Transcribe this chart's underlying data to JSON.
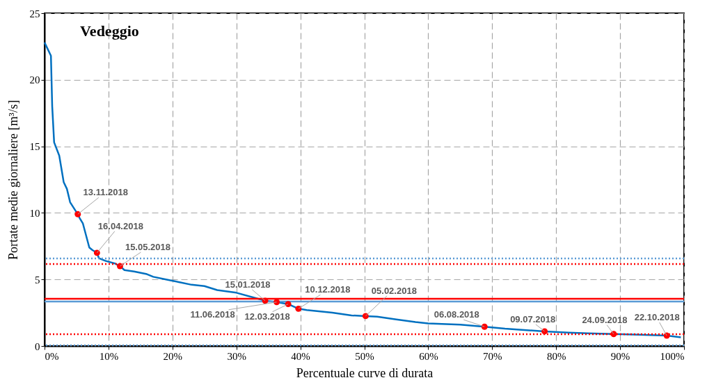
{
  "chart_data": {
    "type": "line",
    "title": "Vedeggio",
    "xlabel": "Percentuale  curve di durata",
    "ylabel": "Portate medie giornaliere  [m³/s]",
    "xlim": [
      0,
      100
    ],
    "ylim": [
      0,
      25
    ],
    "xticks": [
      {
        "value": 0,
        "label": "0%"
      },
      {
        "value": 10,
        "label": "10%"
      },
      {
        "value": 20,
        "label": "20%"
      },
      {
        "value": 30,
        "label": "30%"
      },
      {
        "value": 40,
        "label": "40%"
      },
      {
        "value": 50,
        "label": "50%"
      },
      {
        "value": 60,
        "label": "60%"
      },
      {
        "value": 70,
        "label": "70%"
      },
      {
        "value": 80,
        "label": "80%"
      },
      {
        "value": 90,
        "label": "90%"
      },
      {
        "value": 100,
        "label": "100%"
      }
    ],
    "yticks": [
      0,
      5,
      10,
      15,
      20,
      25
    ],
    "grid": true,
    "series": [
      {
        "type": "line",
        "color": "#0070c0",
        "x": [
          0,
          1,
          1.2,
          1.5,
          2.3,
          3,
          3.5,
          4,
          5.2,
          5.5,
          6,
          6.5,
          7,
          7.5,
          8.2,
          8.5,
          9.5,
          11,
          11.8,
          12.5,
          14,
          16,
          17,
          19,
          21,
          23,
          25,
          27,
          30,
          33,
          34.5,
          36.3,
          38.1,
          39.7,
          41,
          45,
          48,
          50.2,
          52,
          55,
          58,
          60,
          65,
          68.8,
          72,
          75,
          78.2,
          82,
          85,
          89,
          93,
          97.3,
          99.5
        ],
        "values": [
          22.8,
          21.8,
          18,
          15.3,
          14.3,
          12.3,
          11.8,
          10.8,
          9.9,
          9.6,
          9.2,
          8.3,
          7.4,
          7.2,
          7.0,
          6.6,
          6.4,
          6.2,
          6.0,
          5.7,
          5.6,
          5.4,
          5.2,
          5.0,
          4.8,
          4.6,
          4.5,
          4.2,
          4.0,
          3.6,
          3.4,
          3.3,
          3.15,
          2.8,
          2.7,
          2.5,
          2.3,
          2.25,
          2.2,
          2.0,
          1.8,
          1.7,
          1.6,
          1.45,
          1.3,
          1.2,
          1.1,
          1.0,
          0.95,
          0.9,
          0.85,
          0.78,
          0.65
        ]
      },
      {
        "type": "scatter",
        "color": "#ff0000",
        "marker": "circle",
        "x": [
          5.2,
          8.2,
          11.8,
          34.5,
          36.3,
          38.1,
          39.7,
          50.2,
          68.8,
          78.2,
          89,
          97.3
        ],
        "values": [
          9.9,
          7.0,
          6.0,
          3.4,
          3.3,
          3.15,
          2.8,
          2.25,
          1.45,
          1.1,
          0.9,
          0.78
        ]
      }
    ],
    "ref_lines": [
      {
        "axis": "y",
        "value": 3.55,
        "color": "#ff0000",
        "line_style": "solid"
      },
      {
        "axis": "y",
        "value": 3.34,
        "color": "#5b9bd5",
        "line_style": "solid"
      },
      {
        "axis": "y",
        "value": 6.58,
        "color": "#5b9bd5",
        "line_style": "dotted"
      },
      {
        "axis": "y",
        "value": 6.16,
        "color": "#ff0000",
        "line_style": "dotted"
      },
      {
        "axis": "y",
        "value": 0.89,
        "color": "#ff0000",
        "line_style": "dotted"
      },
      {
        "axis": "y",
        "value": 0.05,
        "color": "#5b9bd5",
        "line_style": "dotted"
      }
    ],
    "annotations": [
      {
        "text": "13.11.2018",
        "x": 5.2,
        "y": 9.9
      },
      {
        "text": "16.04.2018",
        "x": 8.2,
        "y": 7.0
      },
      {
        "text": "15.05.2018",
        "x": 11.8,
        "y": 6.0
      },
      {
        "text": "15.01.2018",
        "x": 34.5,
        "y": 3.4
      },
      {
        "text": "11.06.2018",
        "x": 36.3,
        "y": 3.3
      },
      {
        "text": "12.03.2018",
        "x": 38.1,
        "y": 3.15
      },
      {
        "text": "10.12.2018",
        "x": 39.7,
        "y": 2.8
      },
      {
        "text": "05.02.2018",
        "x": 50.2,
        "y": 2.25
      },
      {
        "text": "06.08.2018",
        "x": 68.8,
        "y": 1.45
      },
      {
        "text": "09.07.2018",
        "x": 78.2,
        "y": 1.1
      },
      {
        "text": "24.09.2018",
        "x": 89,
        "y": 0.9
      },
      {
        "text": "22.10.2018",
        "x": 97.3,
        "y": 0.78
      }
    ]
  }
}
